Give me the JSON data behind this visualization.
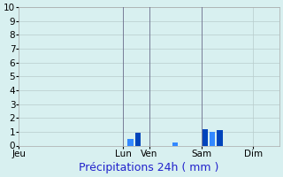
{
  "title": "",
  "xlabel": "Précipitations 24h ( mm )",
  "ylabel": "",
  "background_color": "#d8f0f0",
  "bar_color_dark": "#0044bb",
  "bar_color_light": "#3388ff",
  "grid_color": "#b8cccc",
  "ylim": [
    0,
    10
  ],
  "yticks": [
    0,
    1,
    2,
    3,
    4,
    5,
    6,
    7,
    8,
    9,
    10
  ],
  "day_labels": [
    "Jeu",
    "Lun",
    "Ven",
    "Sam",
    "Dim"
  ],
  "day_positions": [
    0,
    28,
    35,
    49,
    63
  ],
  "xlim": [
    0,
    70
  ],
  "bars": [
    {
      "x": 30,
      "height": 0.5,
      "color": "#3388ff"
    },
    {
      "x": 32,
      "height": 0.9,
      "color": "#0044bb"
    },
    {
      "x": 42,
      "height": 0.25,
      "color": "#3388ff"
    },
    {
      "x": 50,
      "height": 1.2,
      "color": "#0044bb"
    },
    {
      "x": 52,
      "height": 1.0,
      "color": "#3388ff"
    },
    {
      "x": 54,
      "height": 1.1,
      "color": "#0044bb"
    }
  ],
  "bar_width": 1.5,
  "vline_positions": [
    28,
    35,
    49
  ],
  "vline_color": "#666688",
  "xlabel_fontsize": 9,
  "xlabel_color": "#2222cc",
  "tick_fontsize": 7.5
}
